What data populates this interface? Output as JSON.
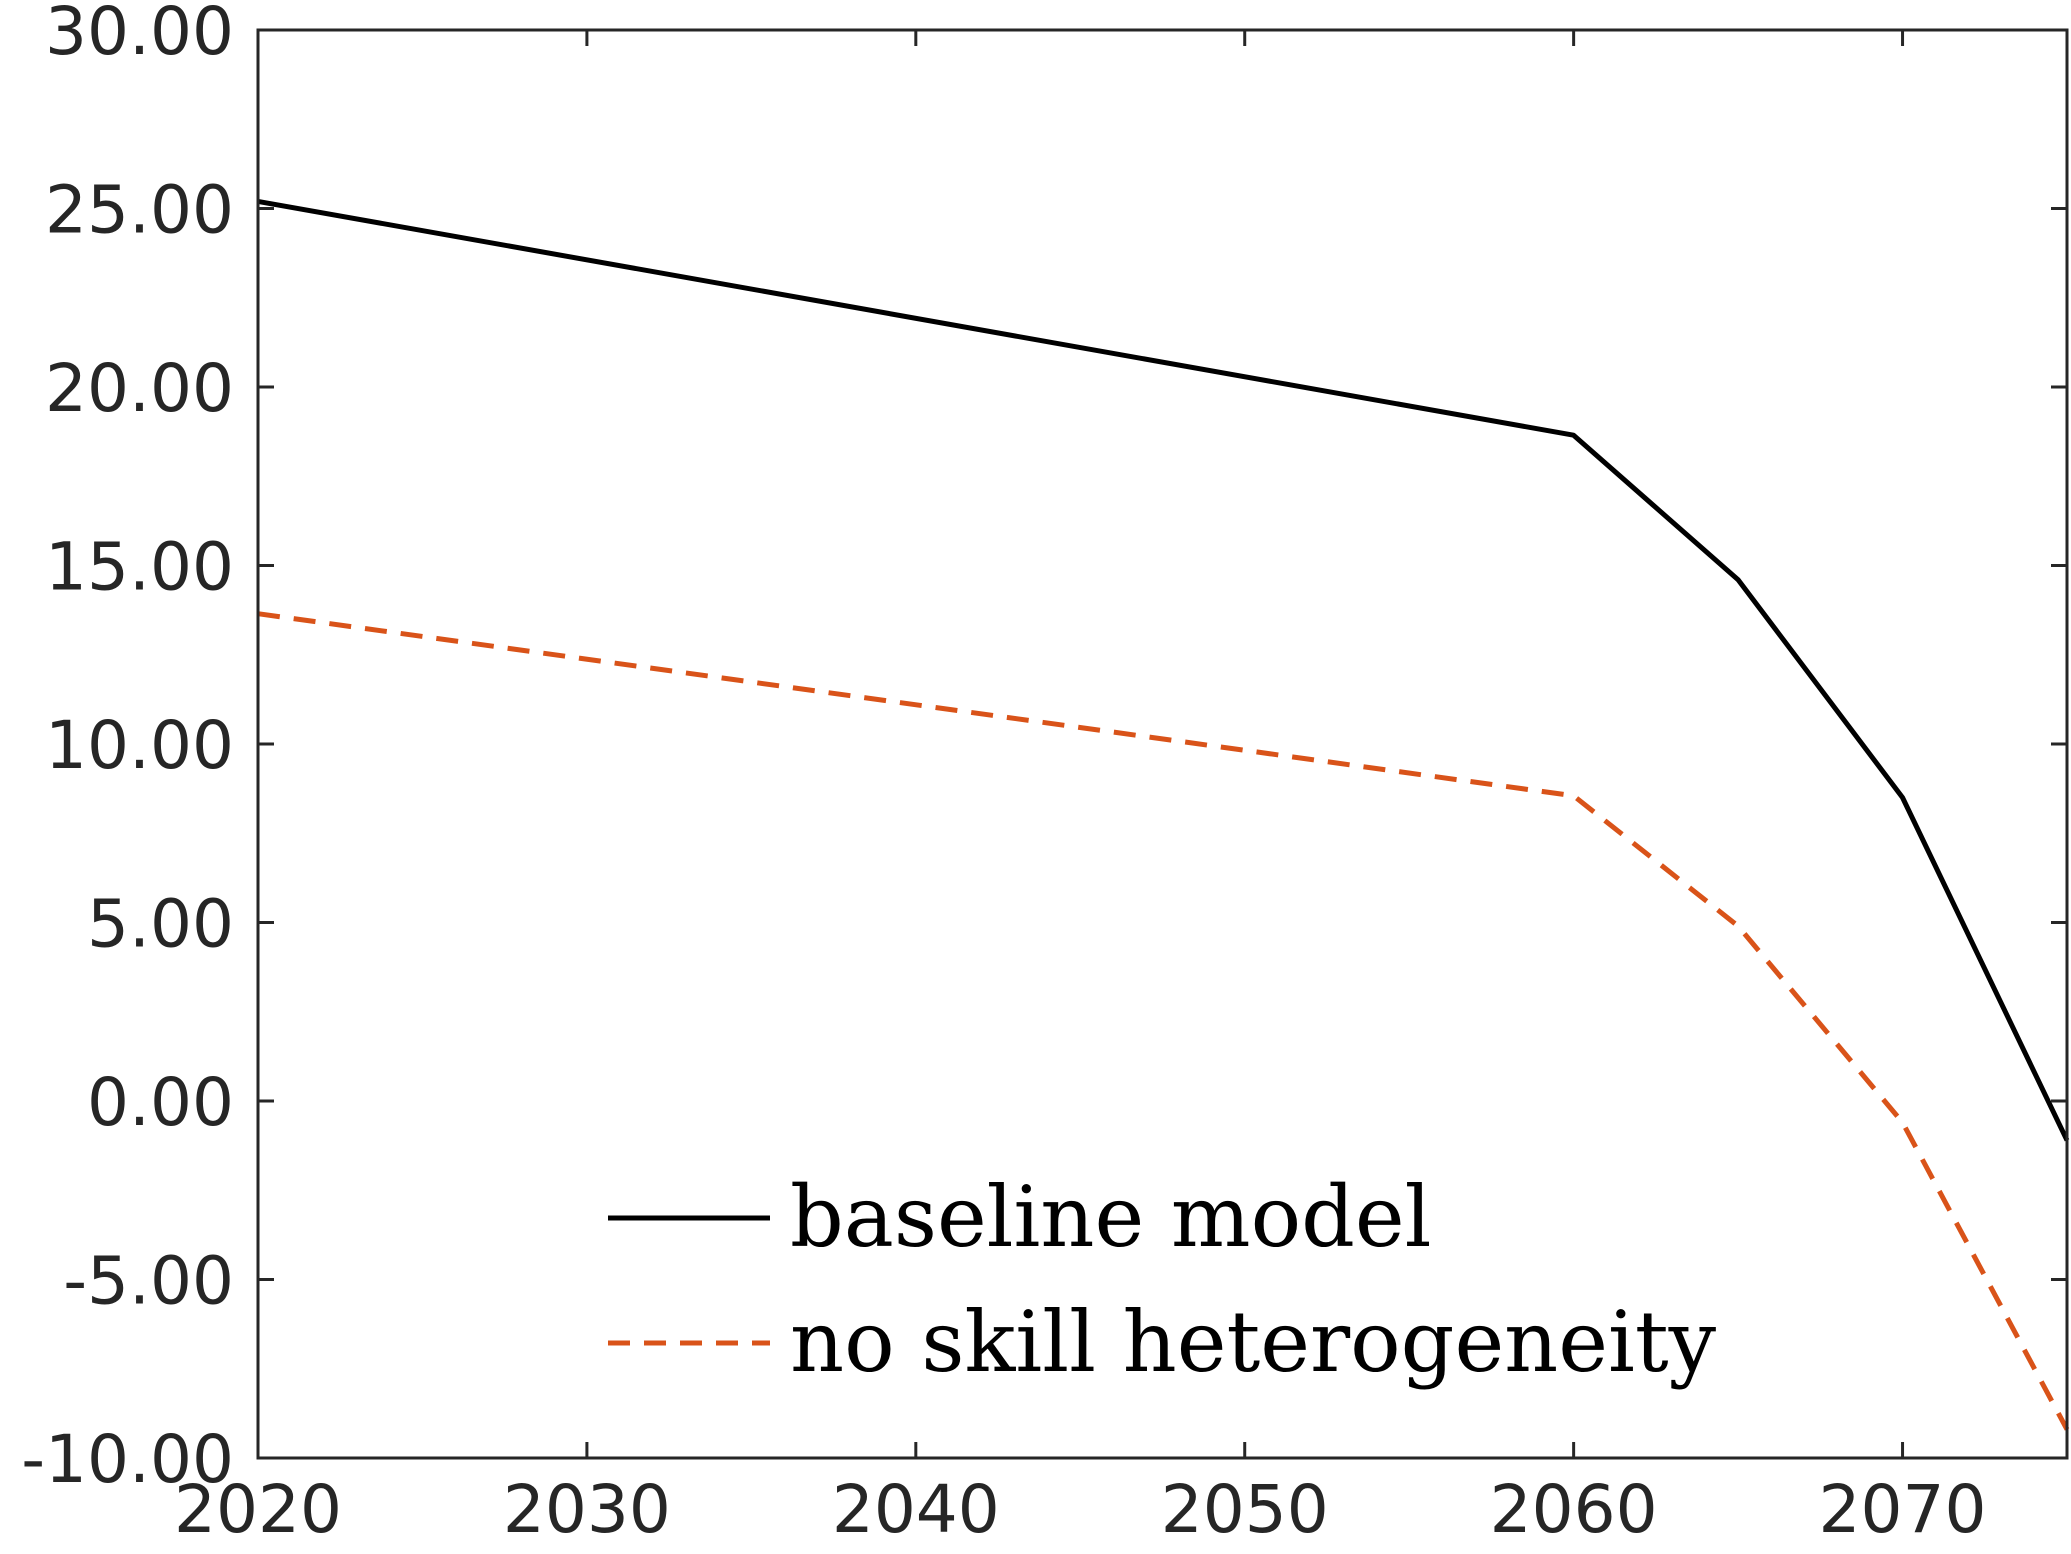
{
  "chart_data": {
    "type": "line",
    "title": "",
    "xlabel": "",
    "ylabel": "",
    "xlim": [
      2020,
      2075
    ],
    "ylim": [
      -10,
      30
    ],
    "xticks": [
      2020,
      2030,
      2040,
      2050,
      2060,
      2070
    ],
    "xtick_labels": [
      "2020",
      "2030",
      "2040",
      "2050",
      "2060",
      "2070"
    ],
    "yticks": [
      30,
      25,
      20,
      15,
      10,
      5,
      0,
      -5,
      -10
    ],
    "ytick_labels": [
      "30.00",
      "25.00",
      "20.00",
      "15.00",
      "10.00",
      "5.00",
      "0.00",
      "-5.00",
      "-10.00"
    ],
    "grid": false,
    "legend_position": "bottom-center",
    "series": [
      {
        "name": "baseline model",
        "color": "#000000",
        "style": "solid",
        "x": [
          2020,
          2060,
          2065,
          2070,
          2075
        ],
        "y": [
          25.2,
          18.65,
          14.6,
          8.5,
          -1.1
        ]
      },
      {
        "name": "no skill heterogeneity",
        "color": "#D95319",
        "style": "dashed",
        "x": [
          2020,
          2060,
          2065,
          2070,
          2075
        ],
        "y": [
          13.65,
          8.55,
          4.9,
          -0.6,
          -9.2
        ]
      }
    ]
  }
}
